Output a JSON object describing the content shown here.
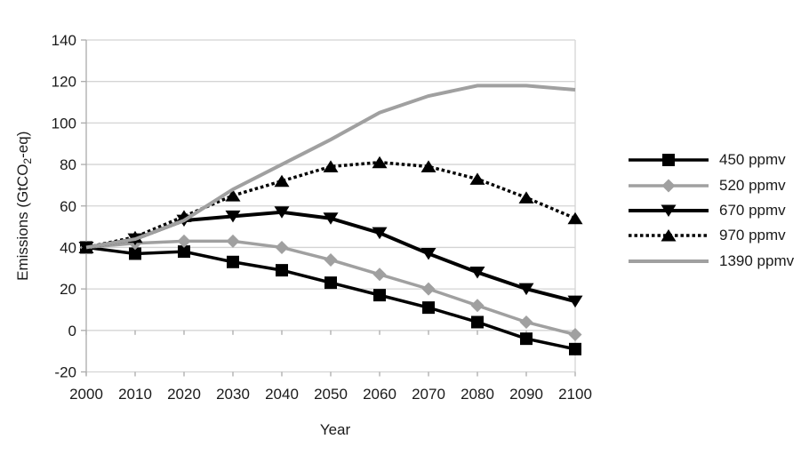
{
  "chart_data": {
    "type": "line",
    "title": "",
    "xlabel": "Year",
    "ylabel": "Emissions (GtCO2-eq)",
    "ylabel_rich": [
      {
        "text": "Emissions (GtCO",
        "subscript": false
      },
      {
        "text": "2",
        "subscript": true
      },
      {
        "text": "-eq)",
        "subscript": false
      }
    ],
    "x": [
      2000,
      2010,
      2020,
      2030,
      2040,
      2050,
      2060,
      2070,
      2080,
      2090,
      2100
    ],
    "xticks": [
      2000,
      2010,
      2020,
      2030,
      2040,
      2050,
      2060,
      2070,
      2080,
      2090,
      2100
    ],
    "yticks": [
      -20,
      0,
      20,
      40,
      60,
      80,
      100,
      120,
      140
    ],
    "ylim": [
      -20,
      140
    ],
    "xlim": [
      2000,
      2100
    ],
    "grid": "horizontal",
    "legend_position": "right",
    "axis_colors": {
      "text": "#1a1a1a",
      "grid": "#d4d4d4",
      "axis": "#ababab"
    },
    "series": [
      {
        "name": "450 ppmv",
        "color": "#000000",
        "line": "solid",
        "width": 3.5,
        "marker": "square",
        "values": [
          40,
          37,
          38,
          33,
          29,
          23,
          17,
          11,
          4,
          -4,
          -9
        ]
      },
      {
        "name": "520 ppmv",
        "color": "#a0a0a0",
        "line": "solid",
        "width": 3.5,
        "marker": "diamond",
        "values": [
          40,
          42,
          43,
          43,
          40,
          34,
          27,
          20,
          12,
          4,
          -2
        ]
      },
      {
        "name": "670 ppmv",
        "color": "#000000",
        "line": "solid",
        "width": 4,
        "marker": "triangle-down",
        "values": [
          40,
          44,
          53,
          55,
          57,
          54,
          47,
          37,
          28,
          20,
          14
        ]
      },
      {
        "name": "970 ppmv",
        "color": "#000000",
        "line": "dotted",
        "width": 3.5,
        "marker": "triangle-up",
        "values": [
          40,
          45,
          55,
          65,
          72,
          79,
          81,
          79,
          73,
          64,
          54
        ]
      },
      {
        "name": "1390 ppmv",
        "color": "#a0a0a0",
        "line": "solid",
        "width": 4,
        "marker": "none",
        "values": [
          40,
          44,
          53,
          68,
          80,
          92,
          105,
          113,
          118,
          118,
          116
        ]
      }
    ]
  }
}
